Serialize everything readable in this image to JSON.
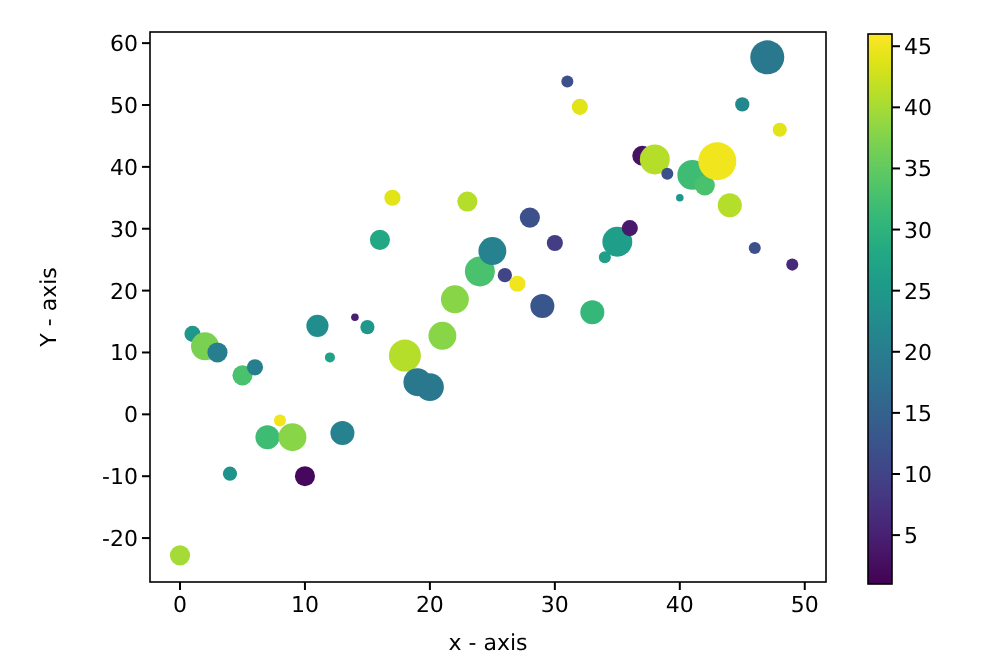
{
  "chart_data": {
    "type": "scatter",
    "xlabel": "x - axis",
    "ylabel": "Y - axis",
    "marker": "circle",
    "x": [
      0,
      1,
      2,
      3,
      4,
      5,
      6,
      7,
      8,
      9,
      10,
      11,
      12,
      13,
      14,
      15,
      16,
      17,
      18,
      19,
      20,
      21,
      22,
      23,
      24,
      25,
      26,
      27,
      28,
      29,
      30,
      31,
      32,
      33,
      34,
      35,
      36,
      37,
      38,
      39,
      40,
      41,
      42,
      43,
      44,
      45,
      46,
      47,
      48,
      49
    ],
    "values": [
      -22.8,
      13,
      11,
      10,
      -9.6,
      6.3,
      7.6,
      -3.7,
      -1,
      -3.7,
      -10,
      14.3,
      9.2,
      -3,
      15.7,
      14.1,
      28.2,
      35,
      9.5,
      5.2,
      4.4,
      12.7,
      18.6,
      34.4,
      23.1,
      26.4,
      22.5,
      21.1,
      31.8,
      17.5,
      27.7,
      53.8,
      49.7,
      16.5,
      25.4,
      27.9,
      30.1,
      41.8,
      41.2,
      38.9,
      35,
      38.7,
      37,
      40.9,
      33.8,
      50.1,
      26.9,
      57.7,
      46,
      24.2
    ],
    "cvalues": [
      40,
      25,
      37,
      20,
      24,
      33,
      20,
      32,
      45,
      38,
      2,
      23,
      27,
      21,
      5,
      25,
      28,
      44,
      41,
      19,
      19,
      38,
      38,
      41,
      33,
      21,
      10,
      45,
      12,
      13,
      9,
      12,
      44,
      31,
      26,
      26,
      4,
      3,
      41,
      12,
      25,
      32,
      33,
      45,
      41,
      22,
      12,
      19,
      44,
      6
    ],
    "sizes": [
      0.28,
      0.18,
      0.54,
      0.28,
      0.14,
      0.28,
      0.18,
      0.4,
      0.1,
      0.54,
      0.28,
      0.34,
      0.07,
      0.4,
      0.04,
      0.14,
      0.28,
      0.18,
      0.71,
      0.54,
      0.54,
      0.54,
      0.54,
      0.28,
      0.62,
      0.54,
      0.14,
      0.18,
      0.28,
      0.4,
      0.18,
      0.1,
      0.18,
      0.4,
      0.1,
      0.62,
      0.18,
      0.28,
      0.62,
      0.1,
      0.04,
      0.62,
      0.28,
      1,
      0.4,
      0.14,
      0.1,
      0.8,
      0.14,
      0.1
    ],
    "xlim": [
      -2.4,
      51.7
    ],
    "ylim": [
      -27.1,
      61.8
    ],
    "xticks": [
      0,
      10,
      20,
      30,
      40,
      50
    ],
    "yticks": [
      -20,
      -10,
      0,
      10,
      20,
      30,
      40,
      50,
      60
    ],
    "clim": [
      1,
      46
    ],
    "cticks": [
      5,
      10,
      15,
      20,
      25,
      30,
      35,
      40,
      45
    ],
    "grid": false
  }
}
